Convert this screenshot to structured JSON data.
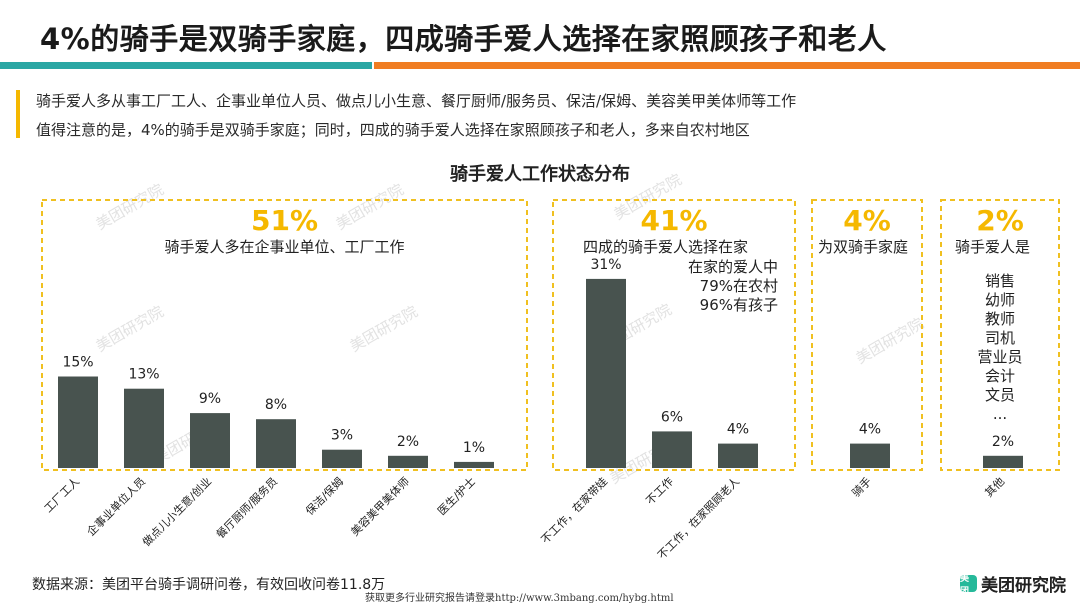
{
  "header": {
    "title": "4%的骑手是双骑手家庭，四成骑手爱人选择在家照顾孩子和老人",
    "intro_lines": [
      "骑手爱人多从事工厂工人、企事业单位人员、做点儿小生意、餐厅厨师/服务员、保洁/保姆、美容美甲美体师等工作",
      "值得注意的是，4%的骑手是双骑手家庭；同时，四成的骑手爱人选择在家照顾孩子和老人，多来自农村地区"
    ]
  },
  "watermark_text": "美团研究院",
  "colors": {
    "bar": "#48534f",
    "group_border": "#f0c020",
    "group_pct": "#f5b800",
    "accent_teal": "#2aa7a4",
    "accent_orange": "#f07d22"
  },
  "chart_data": {
    "type": "bar",
    "title": "骑手爱人工作状态分布",
    "unit": "%",
    "categories": [
      "工厂工人",
      "企事业单位人员",
      "做点儿小生意/创业",
      "餐厅厨师/服务员",
      "保洁/保姆",
      "美容美甲美体师",
      "医生/护士",
      "不工作，在家带娃",
      "不工作",
      "不工作，在家照顾老人",
      "骑手",
      "其他"
    ],
    "values": [
      15,
      13,
      9,
      8,
      3,
      2,
      1,
      31,
      6,
      4,
      4,
      2
    ],
    "value_labels": [
      "15%",
      "13%",
      "9%",
      "8%",
      "3%",
      "2%",
      "1%",
      "31%",
      "6%",
      "4%",
      "4%",
      "2%"
    ],
    "groups": [
      {
        "percent": "51%",
        "caption": "骑手爱人多在企事业单位、工厂工作",
        "note_lines": [],
        "bar_range": [
          0,
          6
        ]
      },
      {
        "percent": "41%",
        "caption": "四成的骑手爱人选择在家",
        "note_lines": [
          "在家的爱人中",
          "79%在农村",
          "96%有孩子"
        ],
        "bar_range": [
          7,
          9
        ]
      },
      {
        "percent": "4%",
        "caption": "为双骑手家庭",
        "note_lines": [],
        "bar_range": [
          10,
          10
        ]
      },
      {
        "percent": "2%",
        "caption": "骑手爱人是",
        "note_lines": [
          "销售",
          "幼师",
          "教师",
          "司机",
          "营业员",
          "会计",
          "文员",
          "..."
        ],
        "bar_range": [
          11,
          11
        ]
      }
    ]
  },
  "footer": {
    "source": "数据来源：美团平台骑手调研问卷，有效回收问卷11.8万",
    "note": "获取更多行业研究报告请登录http://www.3mbang.com/hybg.html",
    "brand_logo_text": "美团",
    "brand_name": "美团研究院"
  }
}
